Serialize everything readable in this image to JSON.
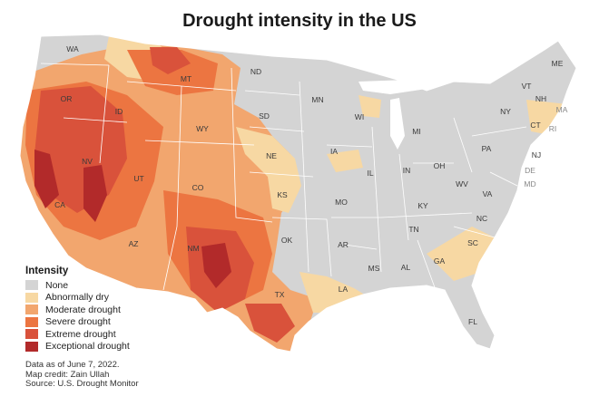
{
  "title": "Drought intensity in the US",
  "legend": {
    "title": "Intensity",
    "items": [
      {
        "label": "None",
        "color": "#d4d4d4"
      },
      {
        "label": "Abnormally dry",
        "color": "#f7d8a3"
      },
      {
        "label": "Moderate drought",
        "color": "#f2a66e"
      },
      {
        "label": "Severe drought",
        "color": "#ec7541"
      },
      {
        "label": "Extreme drought",
        "color": "#d9523b"
      },
      {
        "label": "Exceptional drought",
        "color": "#b22a2a"
      }
    ]
  },
  "notes": {
    "date": "Data as of June 7, 2022.",
    "credit": "Map credit: Zain Ullah",
    "source": "Source: U.S. Drought Monitor"
  },
  "states": {
    "WA": "WA",
    "OR": "OR",
    "CA": "CA",
    "NV": "NV",
    "ID": "ID",
    "MT": "MT",
    "WY": "WY",
    "UT": "UT",
    "AZ": "AZ",
    "CO": "CO",
    "NM": "NM",
    "ND": "ND",
    "SD": "SD",
    "NE": "NE",
    "KS": "KS",
    "OK": "OK",
    "TX": "TX",
    "MN": "MN",
    "IA": "IA",
    "MO": "MO",
    "AR": "AR",
    "LA": "LA",
    "WI": "WI",
    "IL": "IL",
    "MS": "MS",
    "MI": "MI",
    "IN": "IN",
    "KY": "KY",
    "TN": "TN",
    "AL": "AL",
    "OH": "OH",
    "GA": "GA",
    "FL": "FL",
    "SC": "SC",
    "NC": "NC",
    "VA": "VA",
    "WV": "WV",
    "PA": "PA",
    "NY": "NY",
    "VT": "VT",
    "NH": "NH",
    "ME": "ME",
    "MA": "MA",
    "CT": "CT",
    "RI": "RI",
    "NJ": "NJ",
    "DE": "DE",
    "MD": "MD"
  }
}
